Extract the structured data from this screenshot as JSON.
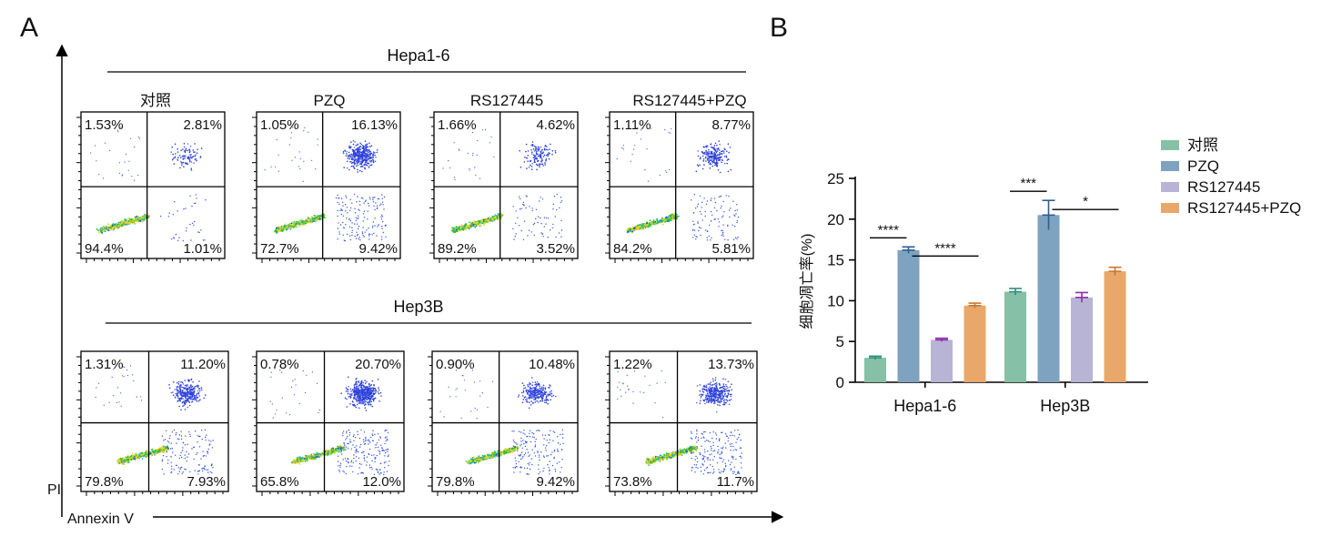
{
  "panel_a": {
    "letter": "A",
    "axis_x_label": "Annexin V",
    "axis_y_label": "PI",
    "rows": [
      {
        "cell_line": "Hepa1-6",
        "plots": [
          {
            "group": "对照",
            "q_ul": "1.53%",
            "q_ur": "2.81%",
            "q_ll": "94.4%",
            "q_lr": "1.01%"
          },
          {
            "group": "PZQ",
            "q_ul": "1.05%",
            "q_ur": "16.13%",
            "q_ll": "72.7%",
            "q_lr": "9.42%"
          },
          {
            "group": "RS127445",
            "q_ul": "1.66%",
            "q_ur": "4.62%",
            "q_ll": "89.2%",
            "q_lr": "3.52%"
          },
          {
            "group": "RS127445+PZQ",
            "q_ul": "1.11%",
            "q_ur": "8.77%",
            "q_ll": "84.2%",
            "q_lr": "5.81%"
          }
        ]
      },
      {
        "cell_line": "Hep3B",
        "plots": [
          {
            "group": "",
            "q_ul": "1.31%",
            "q_ur": "11.20%",
            "q_ll": "79.8%",
            "q_lr": "7.93%"
          },
          {
            "group": "",
            "q_ul": "0.78%",
            "q_ur": "20.70%",
            "q_ll": "65.8%",
            "q_lr": "12.0%"
          },
          {
            "group": "",
            "q_ul": "0.90%",
            "q_ur": "10.48%",
            "q_ll": "79.8%",
            "q_lr": "9.42%"
          },
          {
            "group": "",
            "q_ul": "1.22%",
            "q_ur": "13.73%",
            "q_ll": "73.8%",
            "q_lr": "11.7%"
          }
        ]
      }
    ]
  },
  "panel_b": {
    "letter": "B"
  },
  "chart_data": {
    "type": "bar",
    "title": "",
    "xlabel": "",
    "ylabel": "细胞凋亡率(%)",
    "categories": [
      "Hepa1-6",
      "Hep3B"
    ],
    "ylim": [
      0,
      25
    ],
    "yticks": [
      0,
      5,
      10,
      15,
      20,
      25
    ],
    "grid": false,
    "legend_position": "top-right",
    "series": [
      {
        "name": "对照",
        "color": "#86c0a6",
        "error_color": "#2f8f7c",
        "values": [
          3.0,
          11.1
        ],
        "errors": [
          0.2,
          0.4
        ]
      },
      {
        "name": "PZQ",
        "color": "#7da3c0",
        "error_color": "#2f5f8c",
        "values": [
          16.2,
          20.5
        ],
        "errors": [
          0.4,
          1.8
        ]
      },
      {
        "name": "RS127445",
        "color": "#b7b4d6",
        "error_color": "#8e2fb0",
        "values": [
          5.2,
          10.4
        ],
        "errors": [
          0.2,
          0.6
        ]
      },
      {
        "name": "RS127445+PZQ",
        "color": "#e9a86a",
        "error_color": "#c9772f",
        "values": [
          9.4,
          13.6
        ],
        "errors": [
          0.3,
          0.5
        ]
      }
    ],
    "significance": [
      {
        "category": "Hepa1-6",
        "from_series": 0,
        "to_series": 1,
        "label": "****"
      },
      {
        "category": "Hepa1-6",
        "from_series": 1,
        "to_series": 3,
        "label": "****"
      },
      {
        "category": "Hep3B",
        "from_series": 0,
        "to_series": 1,
        "label": "***"
      },
      {
        "category": "Hep3B",
        "from_series": 1,
        "to_series": 3,
        "label": "*"
      }
    ]
  }
}
